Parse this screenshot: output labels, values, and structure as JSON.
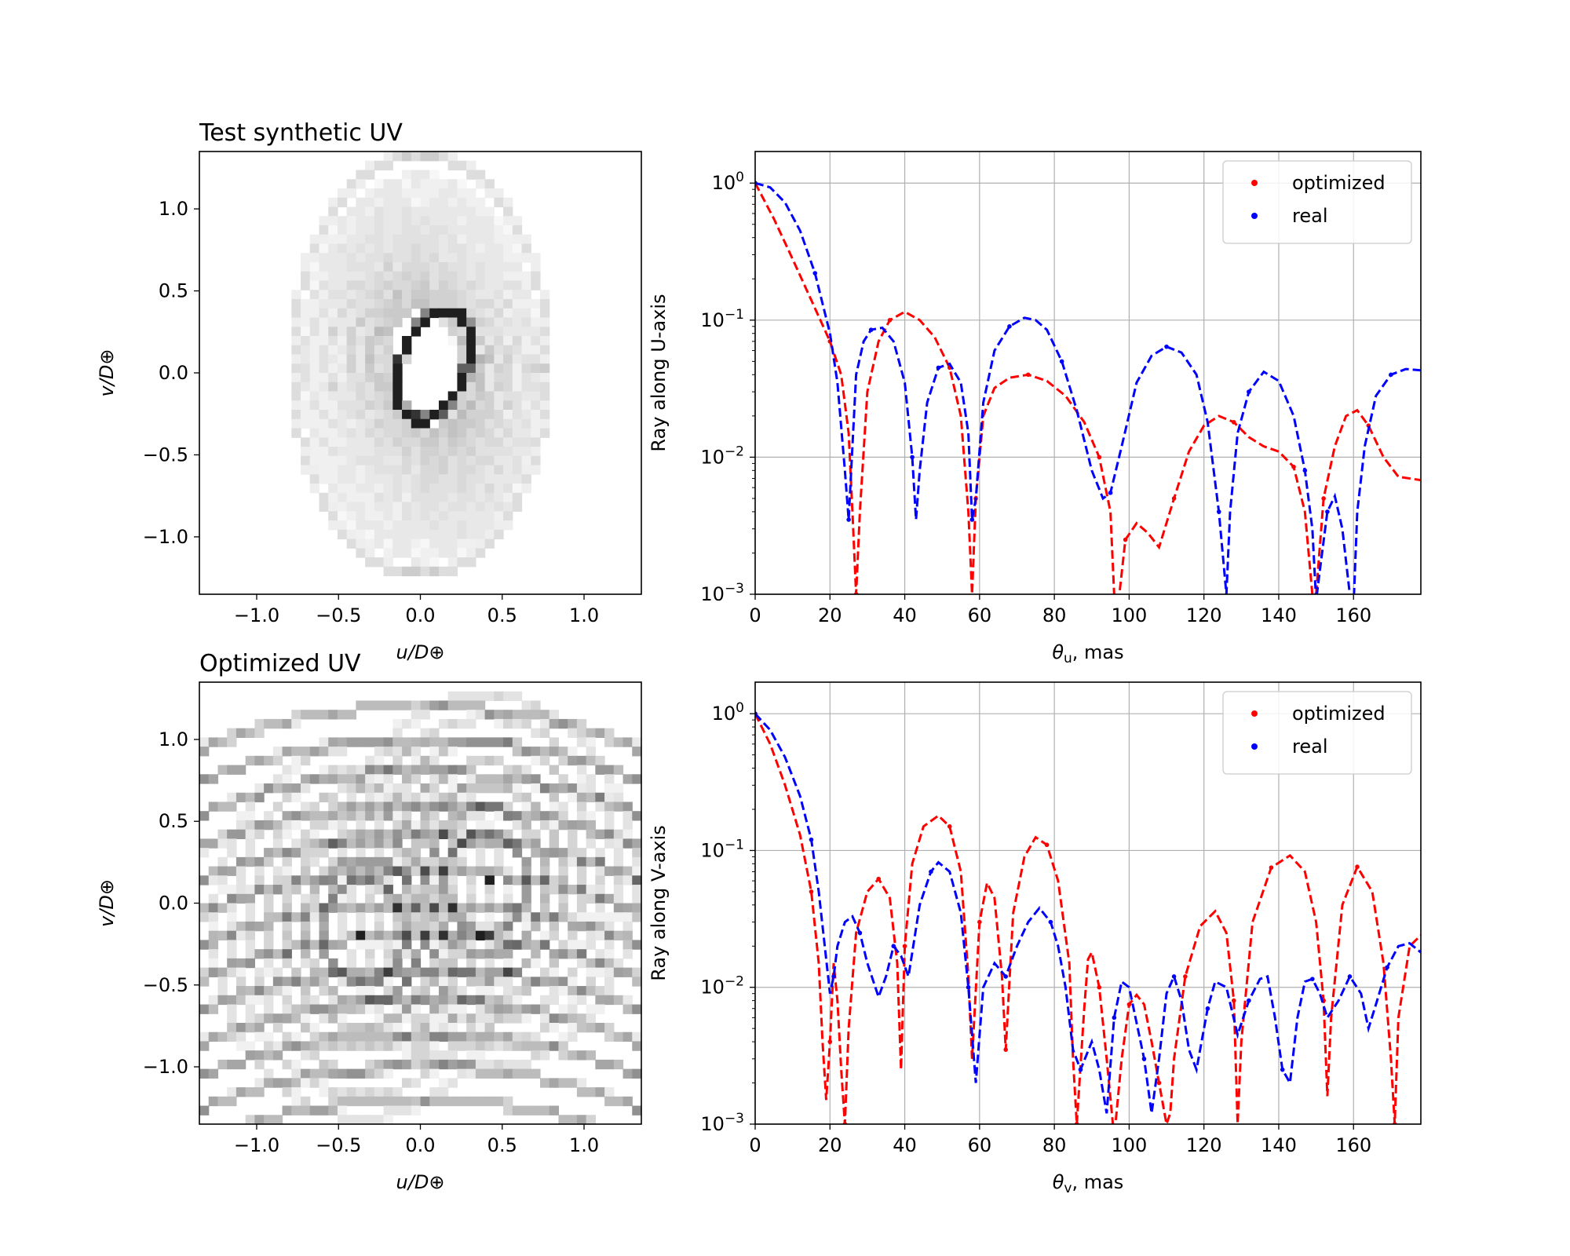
{
  "chart_data": [
    {
      "type": "heatmap",
      "panel": "top-left",
      "title": "Test synthetic UV",
      "xlabel": "u/D⊕",
      "ylabel": "v/D⊕",
      "xlim": [
        -1.35,
        1.35
      ],
      "ylim": [
        -1.35,
        1.35
      ],
      "xticks": [
        -1.0,
        -0.5,
        0.0,
        0.5,
        1.0
      ],
      "xtick_labels": [
        "−1.0",
        "−0.5",
        "0.0",
        "0.5",
        "1.0"
      ],
      "yticks": [
        1.0,
        0.5,
        0.0,
        -0.5,
        -1.0
      ],
      "ytick_labels": [
        "1.0",
        "0.5",
        "0.0",
        "−0.5",
        "−1.0"
      ],
      "colormap": "greys",
      "grid": false,
      "description_of_pattern": {
        "outer_ellipse": {
          "cx": 0.0,
          "cy": 0.05,
          "rx": 0.78,
          "ry": 1.28
        },
        "inner_ellipse": {
          "cx": 0.08,
          "cy": 0.05,
          "rx": 0.2,
          "ry": 0.35,
          "tilt_deg": -20
        },
        "nested_arcs": 14
      }
    },
    {
      "type": "line",
      "panel": "top-right",
      "xlabel": "θu, mas",
      "ylabel": "Ray along U-axis",
      "xlim": [
        0,
        178
      ],
      "ylim": [
        0.001,
        1.7
      ],
      "yscale": "log",
      "xticks": [
        0,
        20,
        40,
        60,
        80,
        100,
        120,
        140,
        160
      ],
      "xtick_labels": [
        "0",
        "20",
        "40",
        "60",
        "80",
        "100",
        "120",
        "140",
        "160"
      ],
      "yticks": [
        1,
        0.1,
        0.01,
        0.001
      ],
      "ytick_labels": [
        "10^0",
        "10^−1",
        "10^−2",
        "10^−3"
      ],
      "grid": true,
      "legend": "top-right",
      "series": [
        {
          "name": "optimized",
          "color": "#ff0000",
          "x": [
            0,
            5,
            10,
            15,
            20,
            23,
            25,
            26,
            27,
            28,
            30,
            33,
            36,
            40,
            44,
            48,
            52,
            55,
            57,
            58,
            59,
            61,
            64,
            68,
            73,
            78,
            83,
            88,
            92,
            95,
            96,
            97,
            99,
            102,
            105,
            108,
            112,
            116,
            120,
            124,
            128,
            132,
            136,
            140,
            144,
            147,
            149,
            150,
            152,
            155,
            158,
            161,
            164,
            168,
            172,
            178
          ],
          "y": [
            1.0,
            0.55,
            0.28,
            0.14,
            0.07,
            0.04,
            0.015,
            0.004,
            0.001,
            0.004,
            0.03,
            0.07,
            0.1,
            0.115,
            0.1,
            0.075,
            0.045,
            0.02,
            0.004,
            0.001,
            0.005,
            0.02,
            0.032,
            0.038,
            0.04,
            0.036,
            0.028,
            0.018,
            0.01,
            0.004,
            0.001,
            0.0008,
            0.0025,
            0.0033,
            0.0028,
            0.0022,
            0.005,
            0.011,
            0.017,
            0.02,
            0.018,
            0.014,
            0.012,
            0.011,
            0.0085,
            0.004,
            0.001,
            0.001,
            0.005,
            0.012,
            0.02,
            0.022,
            0.017,
            0.01,
            0.0072,
            0.0068
          ]
        },
        {
          "name": "real",
          "color": "#0000ff",
          "x": [
            0,
            4,
            8,
            12,
            16,
            20,
            22,
            24,
            25,
            26,
            27,
            29,
            31,
            34,
            37,
            40,
            42,
            43,
            44,
            46,
            49,
            52,
            55,
            57,
            58,
            59,
            61,
            64,
            68,
            72,
            75,
            78,
            82,
            86,
            90,
            93,
            95,
            98,
            102,
            106,
            110,
            114,
            118,
            121,
            124,
            126,
            127,
            129,
            132,
            136,
            140,
            144,
            147,
            149,
            150,
            151,
            153,
            155,
            157,
            159,
            160,
            161,
            163,
            166,
            170,
            174,
            178
          ],
          "y": [
            1.0,
            0.93,
            0.72,
            0.45,
            0.22,
            0.08,
            0.035,
            0.008,
            0.0035,
            0.012,
            0.04,
            0.07,
            0.085,
            0.088,
            0.07,
            0.035,
            0.01,
            0.0035,
            0.008,
            0.025,
            0.045,
            0.048,
            0.035,
            0.015,
            0.0035,
            0.005,
            0.025,
            0.06,
            0.09,
            0.104,
            0.1,
            0.085,
            0.05,
            0.022,
            0.008,
            0.005,
            0.0055,
            0.012,
            0.035,
            0.055,
            0.064,
            0.058,
            0.04,
            0.018,
            0.004,
            0.001,
            0.004,
            0.015,
            0.03,
            0.042,
            0.036,
            0.02,
            0.008,
            0.003,
            0.0009,
            0.0015,
            0.004,
            0.0052,
            0.003,
            0.001,
            0.0008,
            0.004,
            0.012,
            0.028,
            0.04,
            0.044,
            0.043
          ]
        }
      ]
    },
    {
      "type": "heatmap",
      "panel": "bottom-left",
      "title": "Optimized UV",
      "xlabel": "u/D⊕",
      "ylabel": "v/D⊕",
      "xlim": [
        -1.35,
        1.35
      ],
      "ylim": [
        -1.35,
        1.35
      ],
      "xticks": [
        -1.0,
        -0.5,
        0.0,
        0.5,
        1.0
      ],
      "xtick_labels": [
        "−1.0",
        "−0.5",
        "0.0",
        "0.5",
        "1.0"
      ],
      "yticks": [
        1.0,
        0.5,
        0.0,
        -0.5,
        -1.0
      ],
      "ytick_labels": [
        "1.0",
        "0.5",
        "0.0",
        "−0.5",
        "−1.0"
      ],
      "colormap": "greys",
      "grid": false,
      "description_of_pattern": {
        "hot_spots": [
          {
            "u": 0.4,
            "v": 0.13
          },
          {
            "u": -0.35,
            "v": -0.17
          }
        ],
        "horizontal_arcs": 13
      }
    },
    {
      "type": "line",
      "panel": "bottom-right",
      "xlabel": "θv, mas",
      "ylabel": "Ray along V-axis",
      "xlim": [
        0,
        178
      ],
      "ylim": [
        0.001,
        1.7
      ],
      "yscale": "log",
      "xticks": [
        0,
        20,
        40,
        60,
        80,
        100,
        120,
        140,
        160
      ],
      "xtick_labels": [
        "0",
        "20",
        "40",
        "60",
        "80",
        "100",
        "120",
        "140",
        "160"
      ],
      "yticks": [
        1,
        0.1,
        0.01,
        0.001
      ],
      "ytick_labels": [
        "10^0",
        "10^−1",
        "10^−2",
        "10^−3"
      ],
      "grid": true,
      "legend": "top-right",
      "series": [
        {
          "name": "optimized",
          "color": "#ff0000",
          "x": [
            0,
            4,
            8,
            12,
            15,
            17,
            18,
            19,
            20,
            21,
            22,
            23,
            24,
            25,
            27,
            30,
            33,
            36,
            38,
            39,
            40,
            42,
            45,
            49,
            52,
            55,
            57,
            58,
            60,
            62,
            64,
            66,
            67,
            69,
            72,
            75,
            78,
            81,
            84,
            85,
            86,
            88,
            89,
            90,
            92,
            94,
            96,
            98,
            100,
            102,
            104,
            106,
            108,
            110,
            111,
            112,
            115,
            119,
            123,
            126,
            128,
            129,
            130,
            133,
            138,
            143,
            147,
            150,
            152,
            153,
            154,
            157,
            161,
            165,
            168,
            170,
            171,
            172,
            175,
            178
          ],
          "y": [
            1.0,
            0.6,
            0.3,
            0.13,
            0.05,
            0.015,
            0.004,
            0.0015,
            0.004,
            0.015,
            0.008,
            0.0025,
            0.001,
            0.005,
            0.025,
            0.05,
            0.062,
            0.045,
            0.015,
            0.0025,
            0.02,
            0.08,
            0.15,
            0.18,
            0.15,
            0.07,
            0.012,
            0.003,
            0.03,
            0.058,
            0.045,
            0.012,
            0.0035,
            0.035,
            0.09,
            0.125,
            0.11,
            0.06,
            0.015,
            0.003,
            0.001,
            0.007,
            0.016,
            0.018,
            0.01,
            0.003,
            0.0008,
            0.003,
            0.0075,
            0.0088,
            0.0075,
            0.004,
            0.002,
            0.001,
            0.0012,
            0.003,
            0.012,
            0.028,
            0.036,
            0.025,
            0.008,
            0.001,
            0.004,
            0.03,
            0.075,
            0.092,
            0.07,
            0.03,
            0.008,
            0.0016,
            0.006,
            0.04,
            0.076,
            0.05,
            0.015,
            0.003,
            0.001,
            0.006,
            0.02,
            0.024
          ]
        },
        {
          "name": "real",
          "color": "#0000ff",
          "x": [
            0,
            4,
            8,
            12,
            15,
            17,
            19,
            20,
            21,
            22,
            24,
            26,
            28,
            30,
            33,
            35,
            37,
            39,
            41,
            44,
            47,
            49,
            52,
            55,
            57,
            59,
            61,
            64,
            67,
            70,
            73,
            76,
            79,
            81,
            83,
            85,
            87,
            90,
            92,
            94,
            96,
            98,
            100,
            102,
            104,
            106,
            108,
            110,
            112,
            114,
            116,
            118,
            121,
            123,
            126,
            129,
            132,
            135,
            137,
            139,
            141,
            143,
            145,
            147,
            149,
            151,
            153,
            156,
            159,
            162,
            164,
            166,
            169,
            172,
            175,
            178
          ],
          "y": [
            1.0,
            0.76,
            0.48,
            0.25,
            0.12,
            0.05,
            0.016,
            0.009,
            0.012,
            0.02,
            0.03,
            0.033,
            0.025,
            0.015,
            0.0085,
            0.012,
            0.02,
            0.017,
            0.012,
            0.04,
            0.07,
            0.082,
            0.07,
            0.035,
            0.01,
            0.002,
            0.01,
            0.015,
            0.012,
            0.02,
            0.03,
            0.038,
            0.03,
            0.02,
            0.01,
            0.0035,
            0.0025,
            0.004,
            0.0025,
            0.0012,
            0.006,
            0.011,
            0.01,
            0.0055,
            0.003,
            0.0012,
            0.003,
            0.009,
            0.012,
            0.008,
            0.0035,
            0.0025,
            0.007,
            0.011,
            0.01,
            0.0045,
            0.008,
            0.0115,
            0.012,
            0.006,
            0.0025,
            0.002,
            0.006,
            0.011,
            0.0115,
            0.009,
            0.006,
            0.008,
            0.012,
            0.009,
            0.005,
            0.0075,
            0.014,
            0.02,
            0.021,
            0.018
          ]
        }
      ]
    }
  ]
}
